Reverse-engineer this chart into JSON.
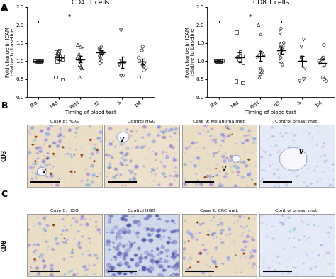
{
  "cd4_data": {
    "Pre": [
      1.02,
      1.01,
      0.99,
      1.0,
      1.01,
      1.0,
      0.98,
      1.01,
      1.0,
      0.99,
      1.01,
      1.0,
      0.99
    ],
    "Mid": [
      1.25,
      1.2,
      1.15,
      1.1,
      1.25,
      0.5,
      0.55,
      1.3,
      1.05,
      1.0
    ],
    "Post": [
      1.4,
      1.35,
      1.1,
      1.0,
      0.8,
      0.85,
      0.9,
      1.45,
      1.05,
      1.2,
      0.55
    ],
    "d3": [
      1.3,
      1.25,
      1.2,
      1.15,
      1.4,
      1.35,
      1.1,
      1.05,
      1.0,
      0.95,
      1.28,
      1.22
    ],
    "S": [
      1.85,
      0.95,
      0.9,
      0.6,
      0.58,
      1.0,
      0.95
    ],
    "1M": [
      1.4,
      1.3,
      1.1,
      1.0,
      0.95,
      0.9,
      0.85,
      0.8,
      0.75,
      0.55
    ]
  },
  "cd8_data": {
    "Pre": [
      1.02,
      1.01,
      0.99,
      1.0,
      1.01,
      1.0,
      0.98,
      1.01,
      1.0,
      0.99,
      1.01,
      1.0,
      0.99
    ],
    "Mid": [
      1.8,
      1.2,
      1.15,
      1.1,
      1.05,
      0.4,
      0.45,
      1.25,
      0.95
    ],
    "Post": [
      2.0,
      1.75,
      1.2,
      1.1,
      0.8,
      0.75,
      0.7,
      0.65,
      1.15,
      1.25,
      0.55
    ],
    "d3": [
      1.9,
      1.8,
      1.5,
      1.4,
      1.35,
      1.3,
      1.2,
      1.1,
      1.0,
      0.9,
      1.45,
      1.38
    ],
    "S": [
      1.6,
      1.4,
      0.8,
      0.45,
      0.5,
      1.05,
      1.1
    ],
    "1M": [
      1.45,
      1.1,
      1.05,
      1.0,
      0.95,
      0.9,
      0.55,
      0.5,
      0.45
    ]
  },
  "categories": [
    "Pre",
    "Mid",
    "Post",
    "d3",
    "S",
    "1M"
  ],
  "cd4_means": [
    1.0,
    1.1,
    1.05,
    1.25,
    0.97,
    0.98
  ],
  "cd4_sems": [
    0.01,
    0.08,
    0.09,
    0.05,
    0.15,
    0.08
  ],
  "cd8_means": [
    1.0,
    1.1,
    1.15,
    1.3,
    1.0,
    0.95
  ],
  "cd8_sems": [
    0.01,
    0.14,
    0.14,
    0.1,
    0.15,
    0.1
  ],
  "title_cd4": "CD4  T cells",
  "title_cd8": "CD8 T cells",
  "ylabel": "Fold change in ICAM\nrelative to baseline",
  "xlabel": "Timing of blood test",
  "ylim": [
    0.0,
    2.5
  ],
  "yticks": [
    0.0,
    0.5,
    1.0,
    1.5,
    2.0,
    2.5
  ],
  "scatter_color": "#333333",
  "B_titles": [
    "Case 8: HGG",
    "Control HGG",
    "Case 9: Melanoma met.",
    "Control breast met."
  ],
  "C_titles": [
    "Case 8: HGG",
    "Control HGG",
    "Case 2: CRC met.",
    "Control breast met."
  ],
  "B_label": "CD3",
  "C_label": "CD8"
}
